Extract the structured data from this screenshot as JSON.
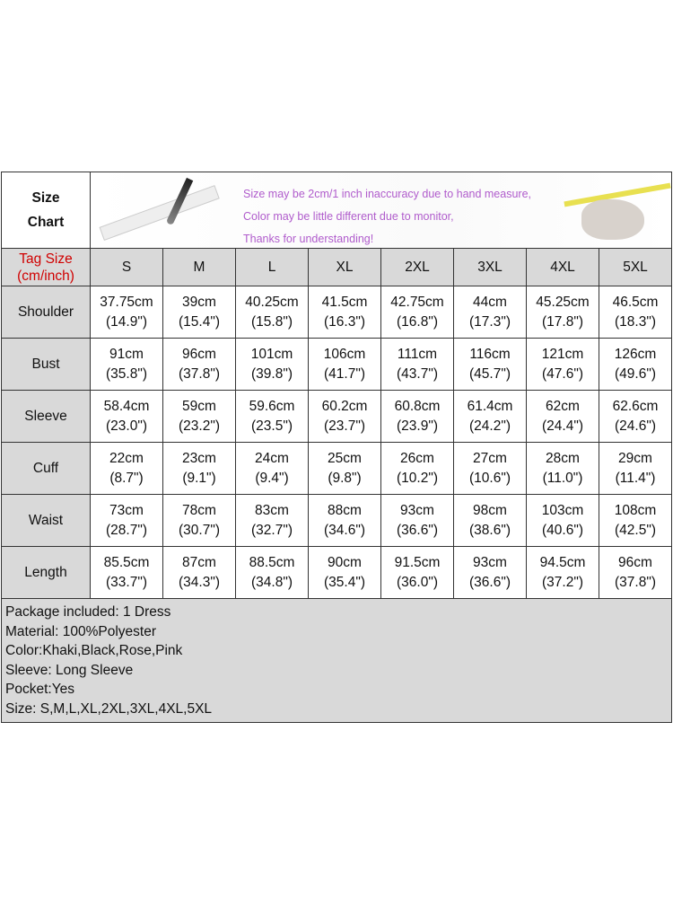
{
  "header": {
    "title_line1": "Size",
    "title_line2": "Chart",
    "notes": [
      "Size may be 2cm/1 inch inaccuracy due to hand measure,",
      "Color may be little different due to monitor,",
      "Thanks for understanding!"
    ]
  },
  "tag_size": {
    "line1": "Tag Size",
    "line2": "(cm/inch)"
  },
  "sizes": [
    "S",
    "M",
    "L",
    "XL",
    "2XL",
    "3XL",
    "4XL",
    "5XL"
  ],
  "rows": [
    {
      "label": "Shoulder",
      "cm": [
        "37.75cm",
        "39cm",
        "40.25cm",
        "41.5cm",
        "42.75cm",
        "44cm",
        "45.25cm",
        "46.5cm"
      ],
      "in": [
        "(14.9\")",
        "(15.4\")",
        "(15.8\")",
        "(16.3\")",
        "(16.8\")",
        "(17.3\")",
        "(17.8\")",
        "(18.3\")"
      ]
    },
    {
      "label": "Bust",
      "cm": [
        "91cm",
        "96cm",
        "101cm",
        "106cm",
        "111cm",
        "116cm",
        "121cm",
        "126cm"
      ],
      "in": [
        "(35.8\")",
        "(37.8\")",
        "(39.8\")",
        "(41.7\")",
        "(43.7\")",
        "(45.7\")",
        "(47.6\")",
        "(49.6\")"
      ]
    },
    {
      "label": "Sleeve",
      "cm": [
        "58.4cm",
        "59cm",
        "59.6cm",
        "60.2cm",
        "60.8cm",
        "61.4cm",
        "62cm",
        "62.6cm"
      ],
      "in": [
        "(23.0\")",
        "(23.2\")",
        "(23.5\")",
        "(23.7\")",
        "(23.9\")",
        "(24.2\")",
        "(24.4\")",
        "(24.6\")"
      ]
    },
    {
      "label": "Cuff",
      "cm": [
        "22cm",
        "23cm",
        "24cm",
        "25cm",
        "26cm",
        "27cm",
        "28cm",
        "29cm"
      ],
      "in": [
        "(8.7\")",
        "(9.1\")",
        "(9.4\")",
        "(9.8\")",
        "(10.2\")",
        "(10.6\")",
        "(11.0\")",
        "(11.4\")"
      ]
    },
    {
      "label": "Waist",
      "cm": [
        "73cm",
        "78cm",
        "83cm",
        "88cm",
        "93cm",
        "98cm",
        "103cm",
        "108cm"
      ],
      "in": [
        "(28.7\")",
        "(30.7\")",
        "(32.7\")",
        "(34.6\")",
        "(36.6\")",
        "(38.6\")",
        "(40.6\")",
        "(42.5\")"
      ]
    },
    {
      "label": "Length",
      "cm": [
        "85.5cm",
        "87cm",
        "88.5cm",
        "90cm",
        "91.5cm",
        "93cm",
        "94.5cm",
        "96cm"
      ],
      "in": [
        "(33.7\")",
        "(34.3\")",
        "(34.8\")",
        "(35.4\")",
        "(36.0\")",
        "(36.6\")",
        "(37.2\")",
        "(37.8\")"
      ]
    }
  ],
  "info": [
    "Package included: 1 Dress",
    "Material: 100%Polyester",
    "Color:Khaki,Black,Rose,Pink",
    "Sleeve: Long Sleeve",
    "Pocket:Yes",
    "Size: S,M,L,XL,2XL,3XL,4XL,5XL"
  ],
  "colors": {
    "tag_label": "#d00000",
    "note_text": "#b05ccc",
    "label_bg": "#d9d9d9"
  }
}
